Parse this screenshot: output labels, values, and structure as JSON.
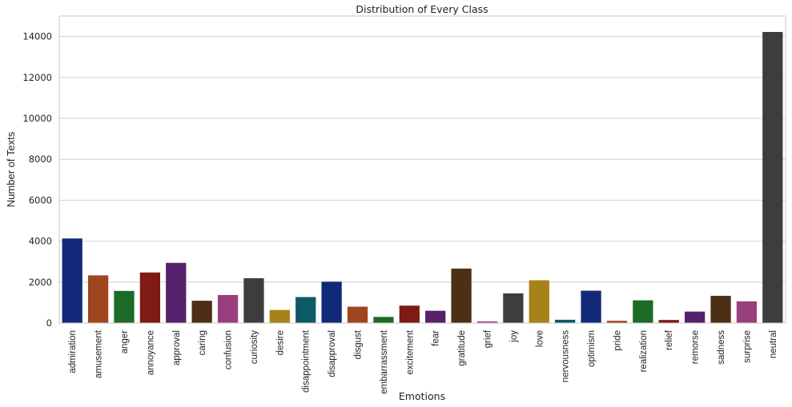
{
  "chart_data": {
    "type": "bar",
    "title": "Distribution of Every Class",
    "xlabel": "Emotions",
    "ylabel": "Number of Texts",
    "ylim": [
      0,
      15000
    ],
    "yticks": [
      0,
      2000,
      4000,
      6000,
      8000,
      10000,
      12000,
      14000
    ],
    "grid": true,
    "categories": [
      "admiration",
      "amusement",
      "anger",
      "annoyance",
      "approval",
      "caring",
      "confusion",
      "curiosity",
      "desire",
      "disappointment",
      "disapproval",
      "disgust",
      "embarrassment",
      "excitement",
      "fear",
      "gratitude",
      "grief",
      "joy",
      "love",
      "nervousness",
      "optimism",
      "pride",
      "realization",
      "relief",
      "remorse",
      "sadness",
      "surprise",
      "neutral"
    ],
    "values": [
      4130,
      2330,
      1570,
      2470,
      2940,
      1090,
      1370,
      2190,
      640,
      1270,
      2020,
      800,
      300,
      850,
      600,
      2660,
      80,
      1450,
      2090,
      160,
      1580,
      110,
      1110,
      150,
      560,
      1330,
      1060,
      14220
    ],
    "colors": [
      "#12297a",
      "#a0461f",
      "#1d6b26",
      "#801a14",
      "#55216a",
      "#4d2f16",
      "#9a3f7e",
      "#3d3d3d",
      "#a7811a",
      "#0d5a66"
    ]
  }
}
